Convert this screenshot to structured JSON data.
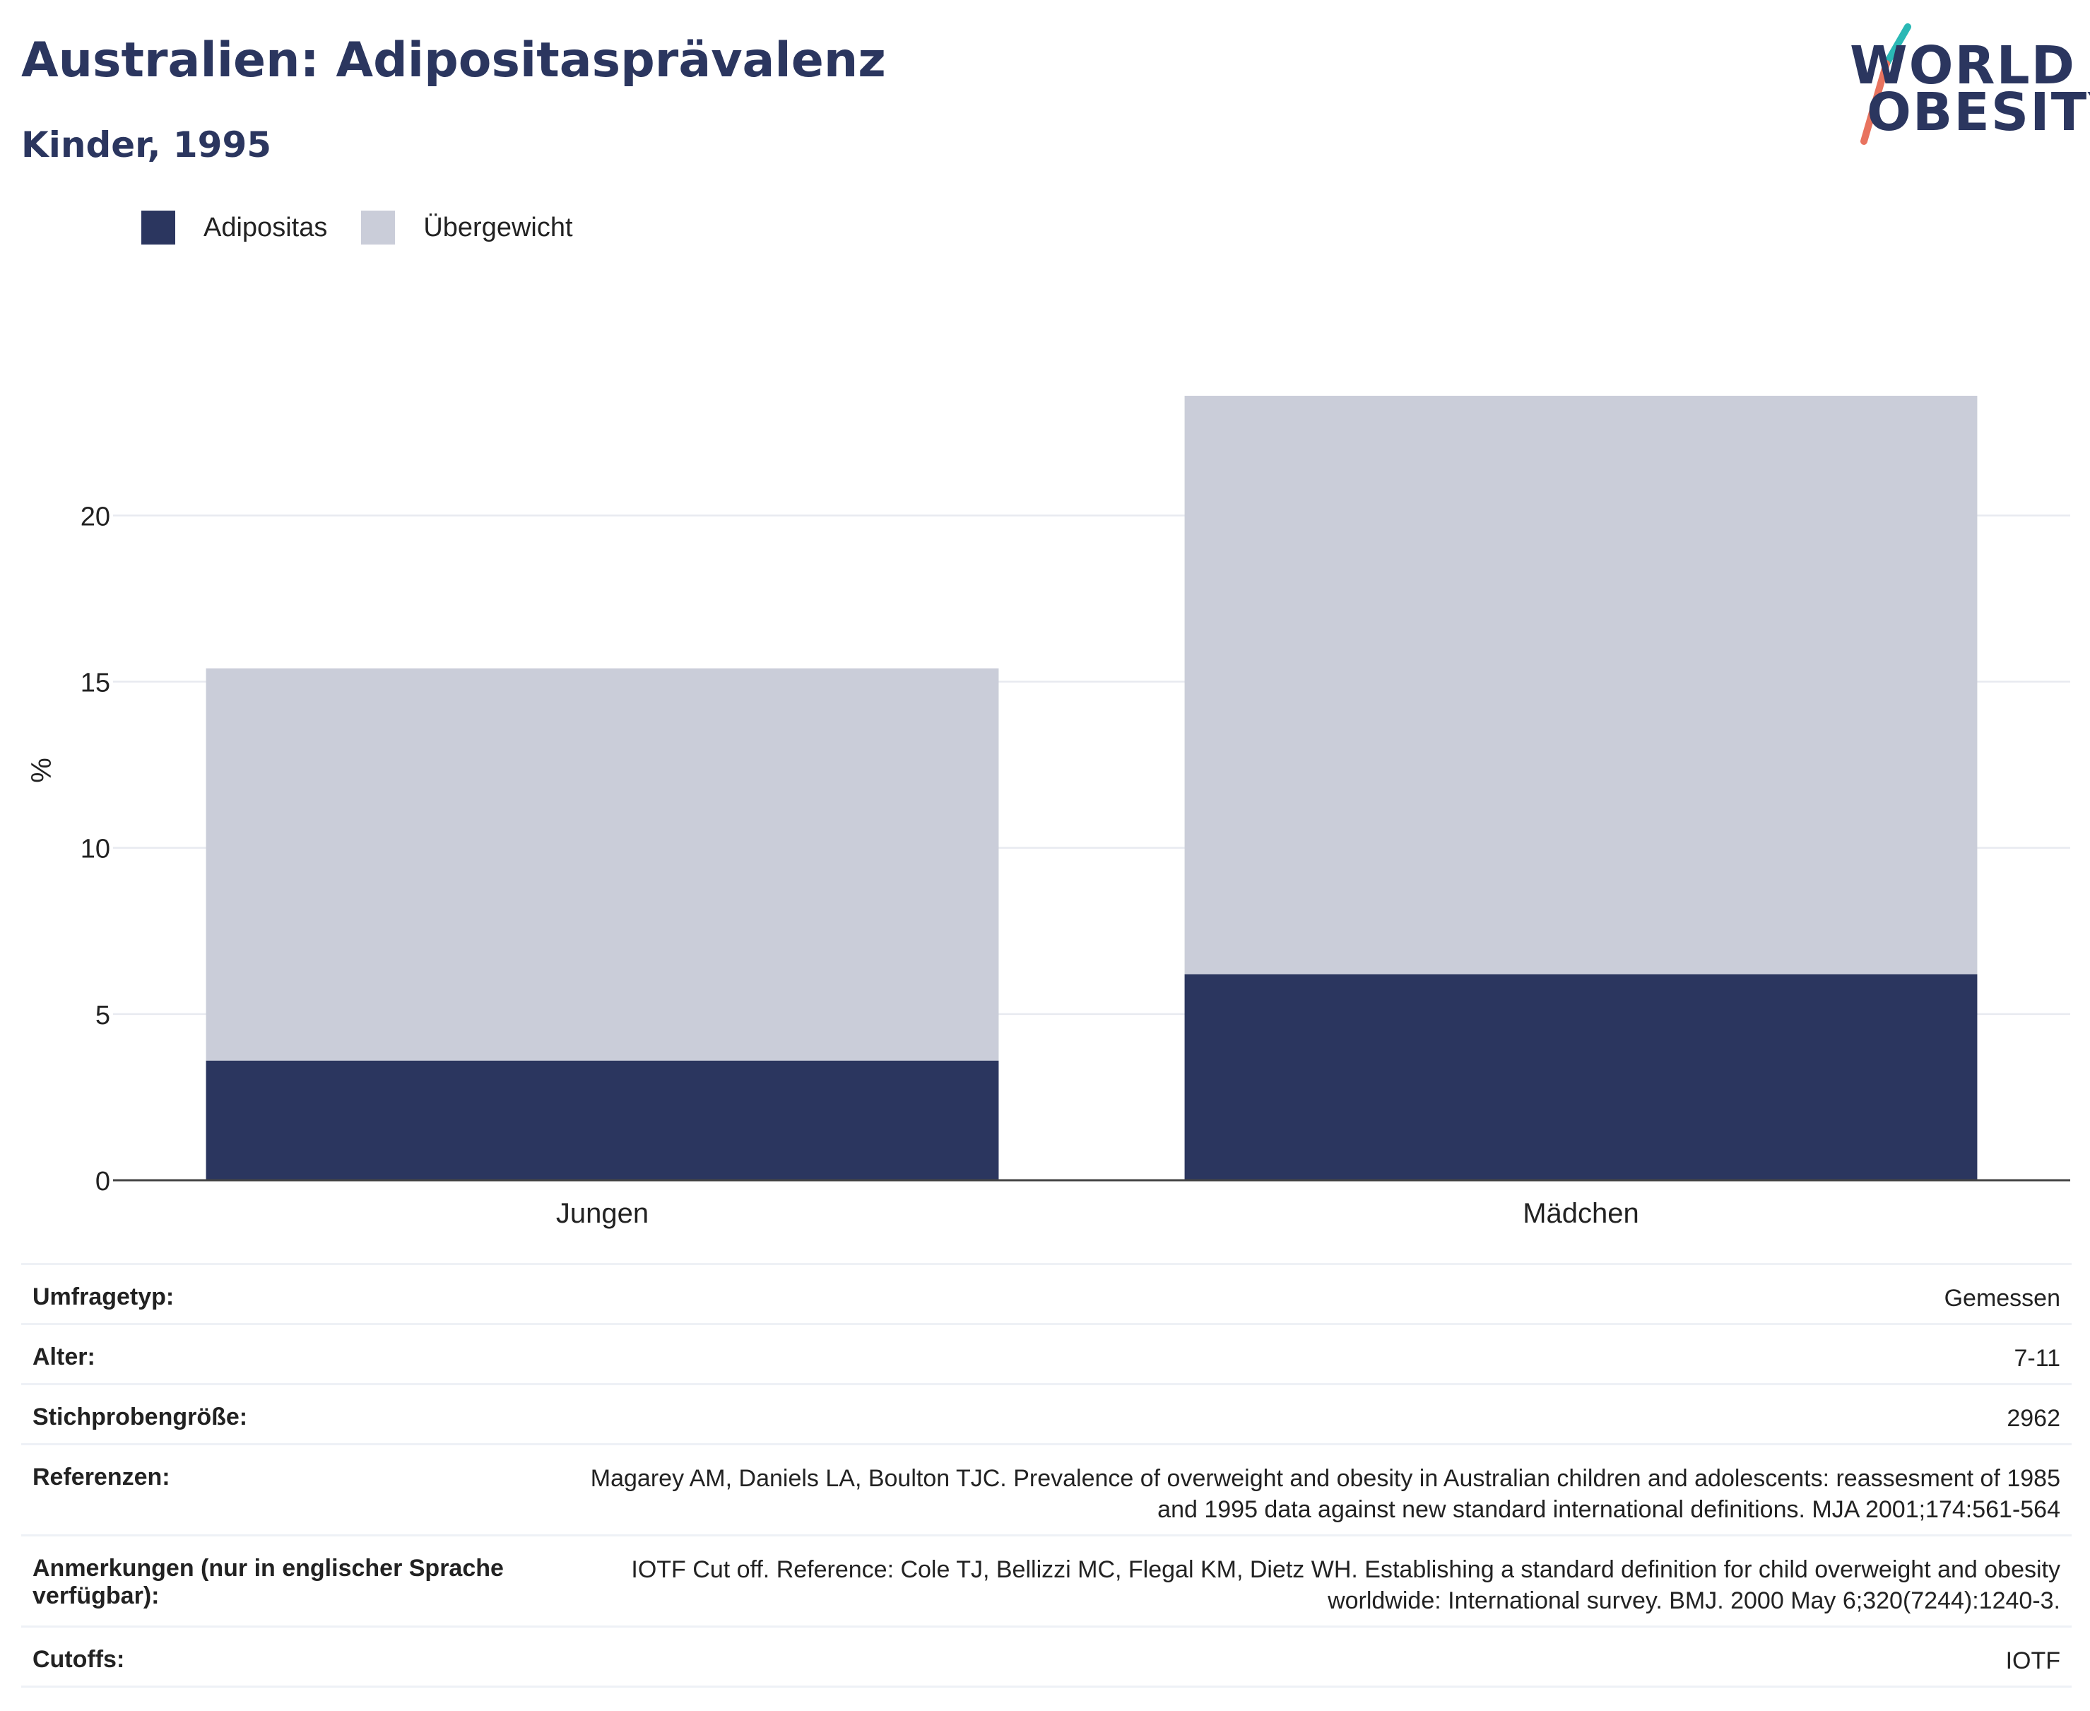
{
  "header": {
    "title": "Australien: Adipositasprävalenz",
    "subtitle": "Kinder, 1995"
  },
  "logo": {
    "line1": "WORLD",
    "line2": "OBESITY",
    "slash_colors": [
      "#2ab8b5",
      "#e8735f"
    ]
  },
  "legend": {
    "items": [
      {
        "label": "Adipositas",
        "color": "#2b365f"
      },
      {
        "label": "Übergewicht",
        "color": "#cacdd9"
      }
    ]
  },
  "chart_data": {
    "type": "bar",
    "stacked": true,
    "categories": [
      "Jungen",
      "Mädchen"
    ],
    "series": [
      {
        "name": "Adipositas",
        "values": [
          3.6,
          6.2
        ],
        "color": "#2b365f"
      },
      {
        "name": "Übergewicht",
        "values": [
          11.8,
          17.4
        ],
        "color": "#cacdd9"
      }
    ],
    "title": "",
    "xlabel": "",
    "ylabel": "%",
    "ylim": [
      0,
      23.6
    ],
    "yticks": [
      0,
      5,
      10,
      15,
      20
    ],
    "grid": true,
    "legend_position": "top-left"
  },
  "info": {
    "rows": [
      {
        "key": "Umfragetyp:",
        "value": "Gemessen"
      },
      {
        "key": "Alter:",
        "value": "7-11"
      },
      {
        "key": "Stichprobengröße:",
        "value": "2962"
      },
      {
        "key": "Referenzen:",
        "value": "Magarey AM, Daniels LA, Boulton TJC. Prevalence of overweight and obesity in Australian children and adolescents: reassesment of 1985 and 1995 data against new standard international definitions. MJA 2001;174:561-564"
      },
      {
        "key": "Anmerkungen (nur in englischer Sprache verfügbar):",
        "value": "IOTF Cut off. Reference: Cole TJ, Bellizzi MC, Flegal KM, Dietz WH. Establishing a standard definition for child overweight and obesity worldwide: International survey. BMJ. 2000 May 6;320(7244):1240-3."
      },
      {
        "key": "Cutoffs:",
        "value": "IOTF"
      }
    ]
  }
}
